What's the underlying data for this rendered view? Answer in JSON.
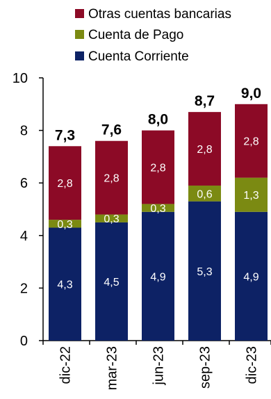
{
  "chart_data": {
    "type": "bar",
    "stacked": true,
    "categories": [
      "dic-22",
      "mar-23",
      "jun-23",
      "sep-23",
      "dic-23"
    ],
    "series": [
      {
        "name": "Cuenta Corriente",
        "color": "#0d2265",
        "values": [
          4.3,
          4.5,
          4.9,
          5.3,
          4.9
        ],
        "labels": [
          "4,3",
          "4,5",
          "4,9",
          "5,3",
          "4,9"
        ]
      },
      {
        "name": "Cuenta de Pago",
        "color": "#7b8a12",
        "values": [
          0.3,
          0.3,
          0.3,
          0.6,
          1.3
        ],
        "labels": [
          "0,3",
          "0,3",
          "0,3",
          "0,6",
          "1,3"
        ]
      },
      {
        "name": "Otras cuentas bancarias",
        "color": "#8c0a26",
        "values": [
          2.8,
          2.8,
          2.8,
          2.8,
          2.8
        ],
        "labels": [
          "2,8",
          "2,8",
          "2,8",
          "2,8",
          "2,8"
        ]
      }
    ],
    "totals": [
      "7,3",
      "7,6",
      "8,0",
      "8,7",
      "9,0"
    ],
    "yticks": [
      "0",
      "2",
      "4",
      "6",
      "8",
      "10"
    ],
    "ylim": [
      0,
      10
    ],
    "grid": false,
    "legend_position": "top",
    "legend_order": [
      "Otras cuentas bancarias",
      "Cuenta de Pago",
      "Cuenta Corriente"
    ]
  }
}
